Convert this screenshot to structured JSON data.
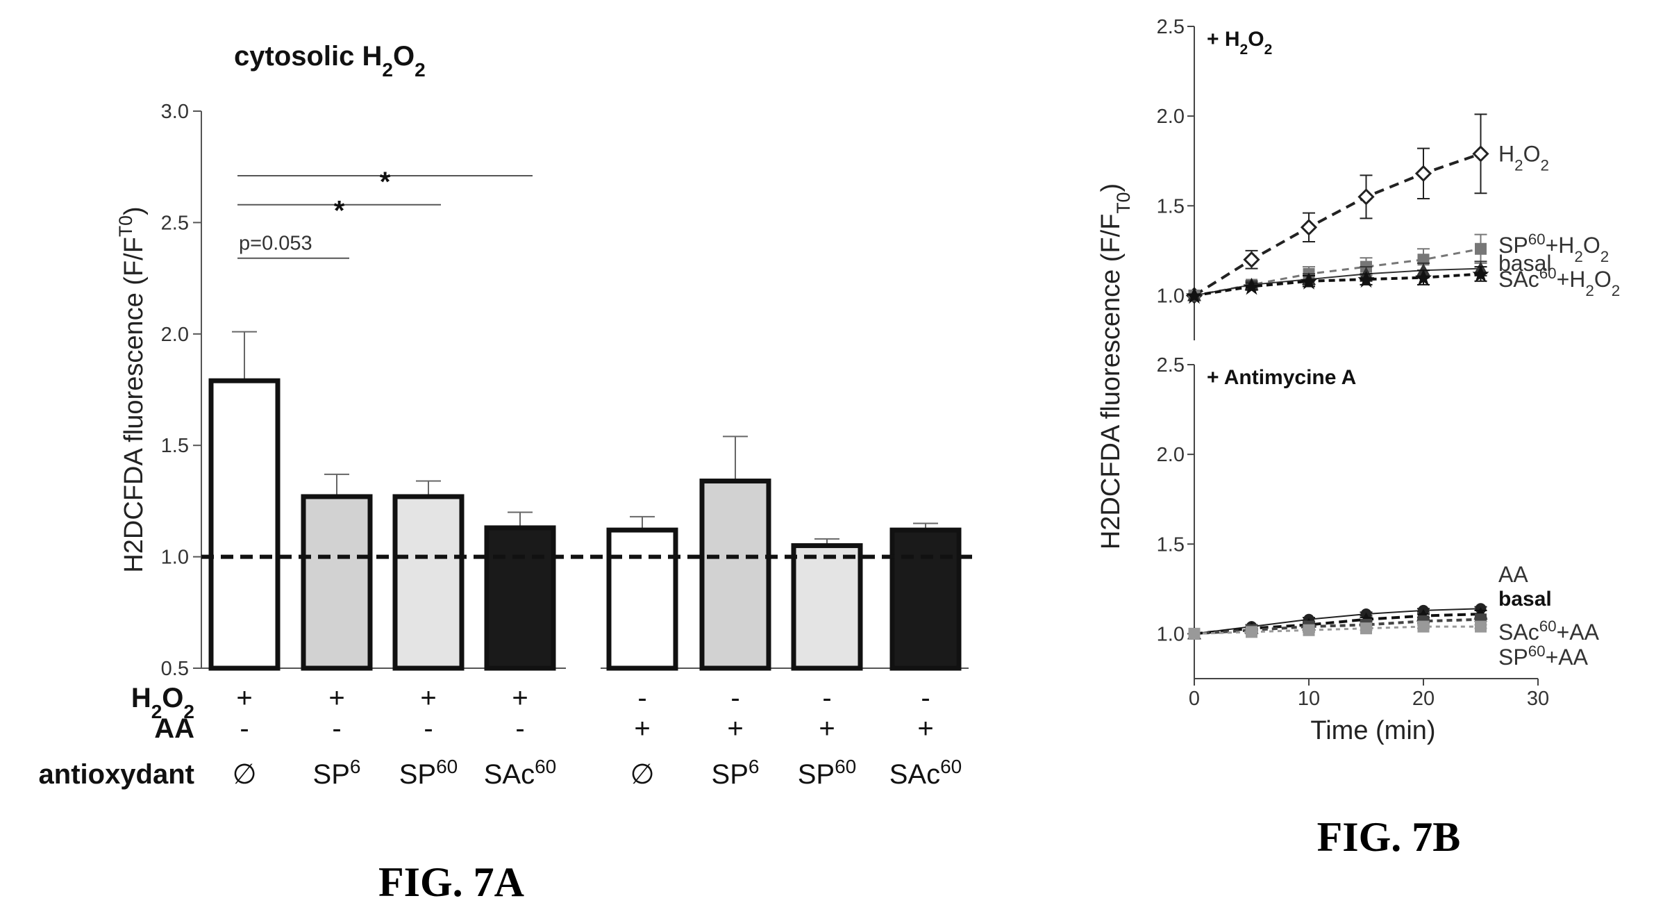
{
  "chart_data": [
    {
      "type": "bar",
      "title_parts": [
        "cytosolic H",
        "2",
        "O",
        "2"
      ],
      "ylabel_parts": [
        "H2DCFDA fluorescence (F/F",
        "T0",
        ")"
      ],
      "ylim": [
        0.5,
        3.0
      ],
      "yticks": [
        "0.5",
        "1.0",
        "1.5",
        "2.0",
        "2.5",
        "3.0"
      ],
      "reference_line": 1.0,
      "row_labels": {
        "h2o2_parts": [
          "H",
          "2",
          "O",
          "2"
        ],
        "aa": "AA",
        "antioxidant": "antioxydant"
      },
      "bars": [
        {
          "value": 1.79,
          "error": 0.22,
          "fill": "#ffffff",
          "h2o2": "+",
          "aa": "-",
          "ant_base": "∅",
          "ant_sup": ""
        },
        {
          "value": 1.27,
          "error": 0.1,
          "fill": "#d2d2d2",
          "h2o2": "+",
          "aa": "-",
          "ant_base": "SP",
          "ant_sup": "6"
        },
        {
          "value": 1.27,
          "error": 0.07,
          "fill": "#e4e4e4",
          "h2o2": "+",
          "aa": "-",
          "ant_base": "SP",
          "ant_sup": "60"
        },
        {
          "value": 1.13,
          "error": 0.07,
          "fill": "#1a1a1a",
          "h2o2": "+",
          "aa": "-",
          "ant_base": "SAc",
          "ant_sup": "60"
        },
        {
          "value": 1.12,
          "error": 0.06,
          "fill": "#ffffff",
          "h2o2": "-",
          "aa": "+",
          "ant_base": "∅",
          "ant_sup": ""
        },
        {
          "value": 1.34,
          "error": 0.2,
          "fill": "#d2d2d2",
          "h2o2": "-",
          "aa": "+",
          "ant_base": "SP",
          "ant_sup": "6"
        },
        {
          "value": 1.05,
          "error": 0.03,
          "fill": "#e4e4e4",
          "h2o2": "-",
          "aa": "+",
          "ant_base": "SP",
          "ant_sup": "60"
        },
        {
          "value": 1.12,
          "error": 0.03,
          "fill": "#1a1a1a",
          "h2o2": "-",
          "aa": "+",
          "ant_base": "SAc",
          "ant_sup": "60"
        }
      ],
      "significance": [
        {
          "from": 0,
          "to": 3,
          "y": 2.71,
          "label": "*"
        },
        {
          "from": 0,
          "to": 2,
          "y": 2.58,
          "label": "*"
        },
        {
          "from": 0,
          "to": 1,
          "y": 2.34,
          "label": "p=0.053"
        }
      ],
      "caption": "FIG. 7A"
    },
    {
      "type": "line",
      "ylabel_parts": [
        "H2DCFDA fluorescence (F/F",
        "T0",
        ")"
      ],
      "xlabel": "Time (min)",
      "xlim": [
        0,
        30
      ],
      "xticks": [
        "0",
        "10",
        "20",
        "30"
      ],
      "ylim": [
        0.75,
        2.5
      ],
      "yticks": [
        "1.0",
        "1.5",
        "2.0",
        "2.5"
      ],
      "x": [
        0,
        5,
        10,
        15,
        20,
        25
      ],
      "panels": [
        {
          "title_parts": [
            "+ H",
            "2",
            "O",
            "2"
          ],
          "series": [
            {
              "label_parts": [
                "H",
                "2",
                "O",
                "2"
              ],
              "label_y": 1.79,
              "values": [
                1.0,
                1.2,
                1.38,
                1.55,
                1.68,
                1.79
              ],
              "errors": [
                0,
                0.05,
                0.08,
                0.12,
                0.14,
                0.22
              ],
              "marker": "diamond-open",
              "color": "#222222",
              "dash": "14,9",
              "width": 4
            },
            {
              "label_parts": [
                "SP",
                "60",
                "+H",
                "2",
                "O",
                "2"
              ],
              "label_y": 1.28,
              "values": [
                1.0,
                1.06,
                1.12,
                1.16,
                1.2,
                1.26
              ],
              "errors": [
                0,
                0.02,
                0.04,
                0.05,
                0.06,
                0.08
              ],
              "marker": "square",
              "color": "#777777",
              "dash": "10,8",
              "width": 3
            },
            {
              "label_parts": [
                "basal"
              ],
              "label_y": 1.18,
              "values": [
                1.0,
                1.06,
                1.09,
                1.12,
                1.14,
                1.15
              ],
              "errors": [
                0,
                0.02,
                0.03,
                0.04,
                0.04,
                0.04
              ],
              "marker": "triangle",
              "color": "#333333",
              "dash": "",
              "width": 2
            },
            {
              "label_parts": [
                "SAc",
                "60",
                "+H",
                "2",
                "O",
                "2"
              ],
              "label_y": 1.09,
              "values": [
                1.0,
                1.05,
                1.08,
                1.09,
                1.1,
                1.12
              ],
              "errors": [
                0,
                0.02,
                0.03,
                0.03,
                0.04,
                0.04
              ],
              "marker": "star",
              "color": "#111111",
              "dash": "9,6",
              "width": 4
            }
          ]
        },
        {
          "title_parts": [
            "+ Antimycine A"
          ],
          "series": [
            {
              "label_parts": [
                "AA"
              ],
              "label_y": 1.33,
              "values": [
                1.0,
                1.04,
                1.08,
                1.11,
                1.13,
                1.14
              ],
              "errors": [
                0,
                0.01,
                0.01,
                0.01,
                0.01,
                0.01
              ],
              "marker": "circle",
              "color": "#222222",
              "dash": "",
              "width": 2
            },
            {
              "label_parts": [
                "basal"
              ],
              "label_y": 1.2,
              "values": [
                1.0,
                1.03,
                1.05,
                1.08,
                1.1,
                1.11
              ],
              "errors": [
                0,
                0.01,
                0.01,
                0.01,
                0.01,
                0.02
              ],
              "marker": "triangle",
              "color": "#111111",
              "dash": "12,7",
              "width": 4
            },
            {
              "label_parts": [
                "SAc",
                "60",
                "+AA"
              ],
              "label_y": 1.01,
              "values": [
                1.0,
                1.02,
                1.04,
                1.05,
                1.07,
                1.08
              ],
              "errors": [
                0,
                0.01,
                0.01,
                0.01,
                0.01,
                0.01
              ],
              "marker": "square",
              "color": "#444444",
              "dash": "8,6",
              "width": 4
            },
            {
              "label_parts": [
                "SP",
                "60",
                "+AA"
              ],
              "label_y": 0.87,
              "values": [
                1.0,
                1.01,
                1.02,
                1.03,
                1.04,
                1.04
              ],
              "errors": [
                0,
                0.01,
                0.01,
                0.01,
                0.01,
                0.01
              ],
              "marker": "square",
              "color": "#999999",
              "dash": "6,6",
              "width": 3
            }
          ]
        }
      ],
      "caption": "FIG. 7B"
    }
  ]
}
